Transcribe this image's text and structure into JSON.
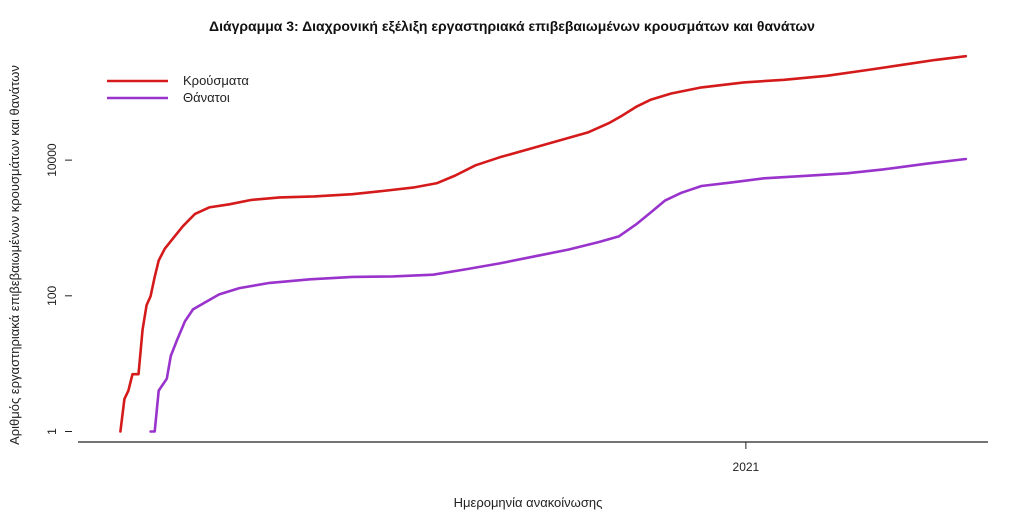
{
  "chart_data": {
    "type": "line",
    "title": "Διάγραμμα 3: Διαχρονική εξέλιξη εργαστηριακά επιβεβαιωμένων κρουσμάτων και θανάτων",
    "xlabel": "Ημερομηνία ανακοίνωσης",
    "ylabel": "Αριθμός εργαστηριακά επιβεβαιωμένων κρουσμάτων και θανάτων",
    "y_scale": "log",
    "y_ticks": [
      1,
      100,
      10000
    ],
    "y_tick_labels": [
      "1",
      "100",
      "10000"
    ],
    "x_ticks": [
      "2021-01-01"
    ],
    "x_tick_labels": [
      "2021"
    ],
    "xlim": [
      "2020-02-05",
      "2021-05-01"
    ],
    "ylim": [
      0.7,
      420000
    ],
    "legend": {
      "position": "top-left",
      "entries": [
        "Κρούσματα",
        "Θάνατοι"
      ]
    },
    "series": [
      {
        "name": "Κρούσματα",
        "color": "#d41a1a",
        "points": [
          [
            "2020-02-26",
            1
          ],
          [
            "2020-02-28",
            3
          ],
          [
            "2020-03-01",
            4
          ],
          [
            "2020-03-03",
            7
          ],
          [
            "2020-03-06",
            7
          ],
          [
            "2020-03-08",
            32
          ],
          [
            "2020-03-10",
            73
          ],
          [
            "2020-03-12",
            99
          ],
          [
            "2020-03-14",
            190
          ],
          [
            "2020-03-16",
            331
          ],
          [
            "2020-03-19",
            495
          ],
          [
            "2020-03-23",
            695
          ],
          [
            "2020-03-28",
            1061
          ],
          [
            "2020-04-03",
            1613
          ],
          [
            "2020-04-10",
            2011
          ],
          [
            "2020-04-20",
            2235
          ],
          [
            "2020-05-01",
            2591
          ],
          [
            "2020-05-15",
            2819
          ],
          [
            "2020-06-01",
            2917
          ],
          [
            "2020-06-20",
            3148
          ],
          [
            "2020-07-05",
            3511
          ],
          [
            "2020-07-20",
            3939
          ],
          [
            "2020-08-01",
            4587
          ],
          [
            "2020-08-10",
            5942
          ],
          [
            "2020-08-20",
            8381
          ],
          [
            "2020-09-01",
            10998
          ],
          [
            "2020-09-15",
            14400
          ],
          [
            "2020-10-01",
            19613
          ],
          [
            "2020-10-15",
            25802
          ],
          [
            "2020-10-25",
            35000
          ],
          [
            "2020-11-01",
            46000
          ],
          [
            "2020-11-08",
            62000
          ],
          [
            "2020-11-15",
            78000
          ],
          [
            "2020-11-25",
            96000
          ],
          [
            "2020-12-10",
            118000
          ],
          [
            "2020-12-31",
            140000
          ],
          [
            "2021-01-20",
            153000
          ],
          [
            "2021-02-10",
            175000
          ],
          [
            "2021-03-01",
            210000
          ],
          [
            "2021-03-20",
            255000
          ],
          [
            "2021-04-05",
            300000
          ],
          [
            "2021-04-20",
            340000
          ]
        ]
      },
      {
        "name": "Θάνατοι",
        "color": "#9933cc",
        "points": [
          [
            "2020-03-12",
            1
          ],
          [
            "2020-03-14",
            1
          ],
          [
            "2020-03-16",
            4
          ],
          [
            "2020-03-20",
            6
          ],
          [
            "2020-03-22",
            13
          ],
          [
            "2020-03-25",
            22
          ],
          [
            "2020-03-29",
            42
          ],
          [
            "2020-04-02",
            63
          ],
          [
            "2020-04-08",
            80
          ],
          [
            "2020-04-15",
            105
          ],
          [
            "2020-04-25",
            130
          ],
          [
            "2020-05-10",
            155
          ],
          [
            "2020-05-30",
            175
          ],
          [
            "2020-06-20",
            190
          ],
          [
            "2020-07-10",
            193
          ],
          [
            "2020-07-30",
            205
          ],
          [
            "2020-08-15",
            245
          ],
          [
            "2020-09-01",
            300
          ],
          [
            "2020-09-20",
            390
          ],
          [
            "2020-10-05",
            480
          ],
          [
            "2020-10-20",
            620
          ],
          [
            "2020-10-30",
            750
          ],
          [
            "2020-11-08",
            1150
          ],
          [
            "2020-11-15",
            1700
          ],
          [
            "2020-11-22",
            2550
          ],
          [
            "2020-11-30",
            3300
          ],
          [
            "2020-12-10",
            4150
          ],
          [
            "2020-12-25",
            4700
          ],
          [
            "2021-01-10",
            5400
          ],
          [
            "2021-02-01",
            5900
          ],
          [
            "2021-02-20",
            6400
          ],
          [
            "2021-03-10",
            7300
          ],
          [
            "2021-04-01",
            8900
          ],
          [
            "2021-04-20",
            10400
          ]
        ]
      }
    ]
  }
}
